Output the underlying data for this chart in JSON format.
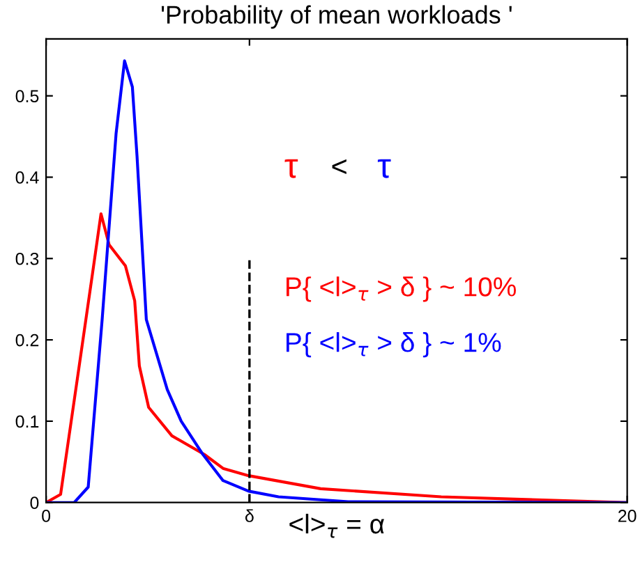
{
  "chart_data": {
    "type": "line",
    "title": "'Probability of mean workloads '",
    "xlabel": "<l>$_{τ}$ = α",
    "xlim": [
      0,
      20
    ],
    "ylim": [
      0,
      0.57
    ],
    "xticks": [
      0,
      {
        "value": 7,
        "label": "δ"
      },
      20
    ],
    "yticks": [
      0,
      0.1,
      0.2,
      0.3,
      0.4,
      0.5
    ],
    "grid": false,
    "legend": false,
    "line_style": "solid",
    "marker": "none",
    "series": [
      {
        "color": "#ff0000",
        "x": [
          0,
          0.5,
          1.14,
          1.6,
          1.89,
          2.17,
          2.73,
          3.05,
          3.21,
          3.53,
          4.33,
          5.45,
          6.09,
          6.97,
          9.45,
          13.6,
          20
        ],
        "values": [
          0,
          0.01,
          0.168,
          0.282,
          0.355,
          0.317,
          0.291,
          0.248,
          0.168,
          0.117,
          0.082,
          0.059,
          0.042,
          0.033,
          0.017,
          0.007,
          0
        ]
      },
      {
        "color": "#0000ff",
        "x": [
          0,
          0.97,
          1.45,
          1.93,
          2.41,
          2.7,
          2.97,
          3.13,
          3.45,
          4.17,
          4.65,
          5.4,
          6.09,
          6.97,
          8.0,
          10.4,
          20
        ],
        "values": [
          0,
          0,
          0.019,
          0.225,
          0.454,
          0.543,
          0.511,
          0.426,
          0.225,
          0.139,
          0.1,
          0.059,
          0.027,
          0.014,
          0.007,
          0.001,
          0
        ]
      }
    ],
    "ref_lines": [
      {
        "axis": "x",
        "value": 7,
        "color": "#000000",
        "line_style": "dashed"
      }
    ],
    "annotations": [
      "τ",
      "<",
      "τ",
      "P{ <l>$_{τ}$ > δ } ~ 10%",
      "P{ <l>$_{τ}$ > δ } ~ 1%"
    ]
  }
}
